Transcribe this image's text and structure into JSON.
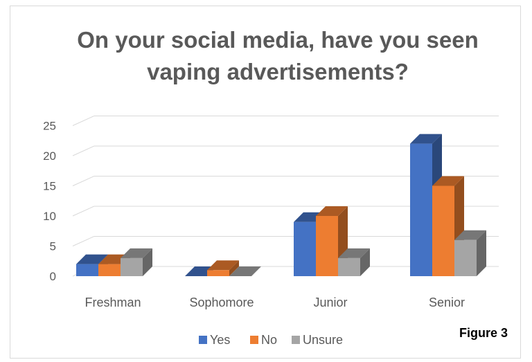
{
  "chart_data": {
    "type": "bar",
    "title_lines": [
      "On your social media, have you seen",
      "vaping advertisements?"
    ],
    "categories": [
      "Freshman",
      "Sophomore",
      "Junior",
      "Senior"
    ],
    "series": [
      {
        "name": "Yes",
        "values": [
          2,
          0,
          9,
          22
        ],
        "color": "#4472c4"
      },
      {
        "name": "No",
        "values": [
          2,
          1,
          10,
          15
        ],
        "color": "#ed7d31"
      },
      {
        "name": "Unsure",
        "values": [
          3,
          0,
          3,
          6
        ],
        "color": "#a5a5a5"
      }
    ],
    "yticks": [
      0,
      5,
      10,
      15,
      20,
      25
    ],
    "ylim": [
      0,
      25
    ],
    "xlabel": "",
    "ylabel": "",
    "grid": true,
    "style": "3d-clustered-column",
    "legend": "bottom"
  },
  "figure_label": "Figure 3"
}
